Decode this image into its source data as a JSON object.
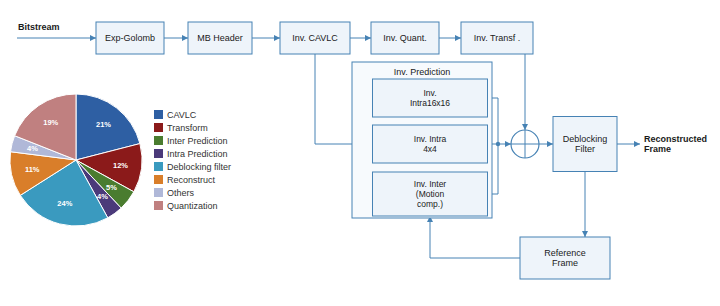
{
  "chart_data": {
    "type": "pie",
    "categories": [
      "CAVLC",
      "Transform",
      "Inter Prediction",
      "Intra Prediction",
      "Deblocking filter",
      "Reconstruct",
      "Others",
      "Quantization"
    ],
    "values": [
      21,
      12,
      5,
      4,
      24,
      11,
      4,
      19
    ],
    "value_labels": [
      "21%",
      "12%",
      "5%",
      "4%",
      "24%",
      "11%",
      "4%",
      "19%"
    ],
    "colors": [
      "#2e5fa3",
      "#8b1a1a",
      "#4a7c2f",
      "#4b3a7a",
      "#3a9abf",
      "#d97e2a",
      "#b0b8d8",
      "#c08080"
    ],
    "data_labels": true,
    "legend": "right",
    "annotations": [
      "Bitstream",
      "Exp-Golomb",
      "MB Header",
      "Inv. CAVLC",
      "Inv. Quant.",
      "Inv. Transf .",
      "Inv. Prediction",
      "Inv.\nIntra16x16",
      "Inv. Intra\n4x4",
      "Inv. Inter\n(Motion\ncomp.)",
      "Deblocking\nFilter",
      "Reference\nFrame",
      "Reconstructed\nFrame"
    ]
  }
}
